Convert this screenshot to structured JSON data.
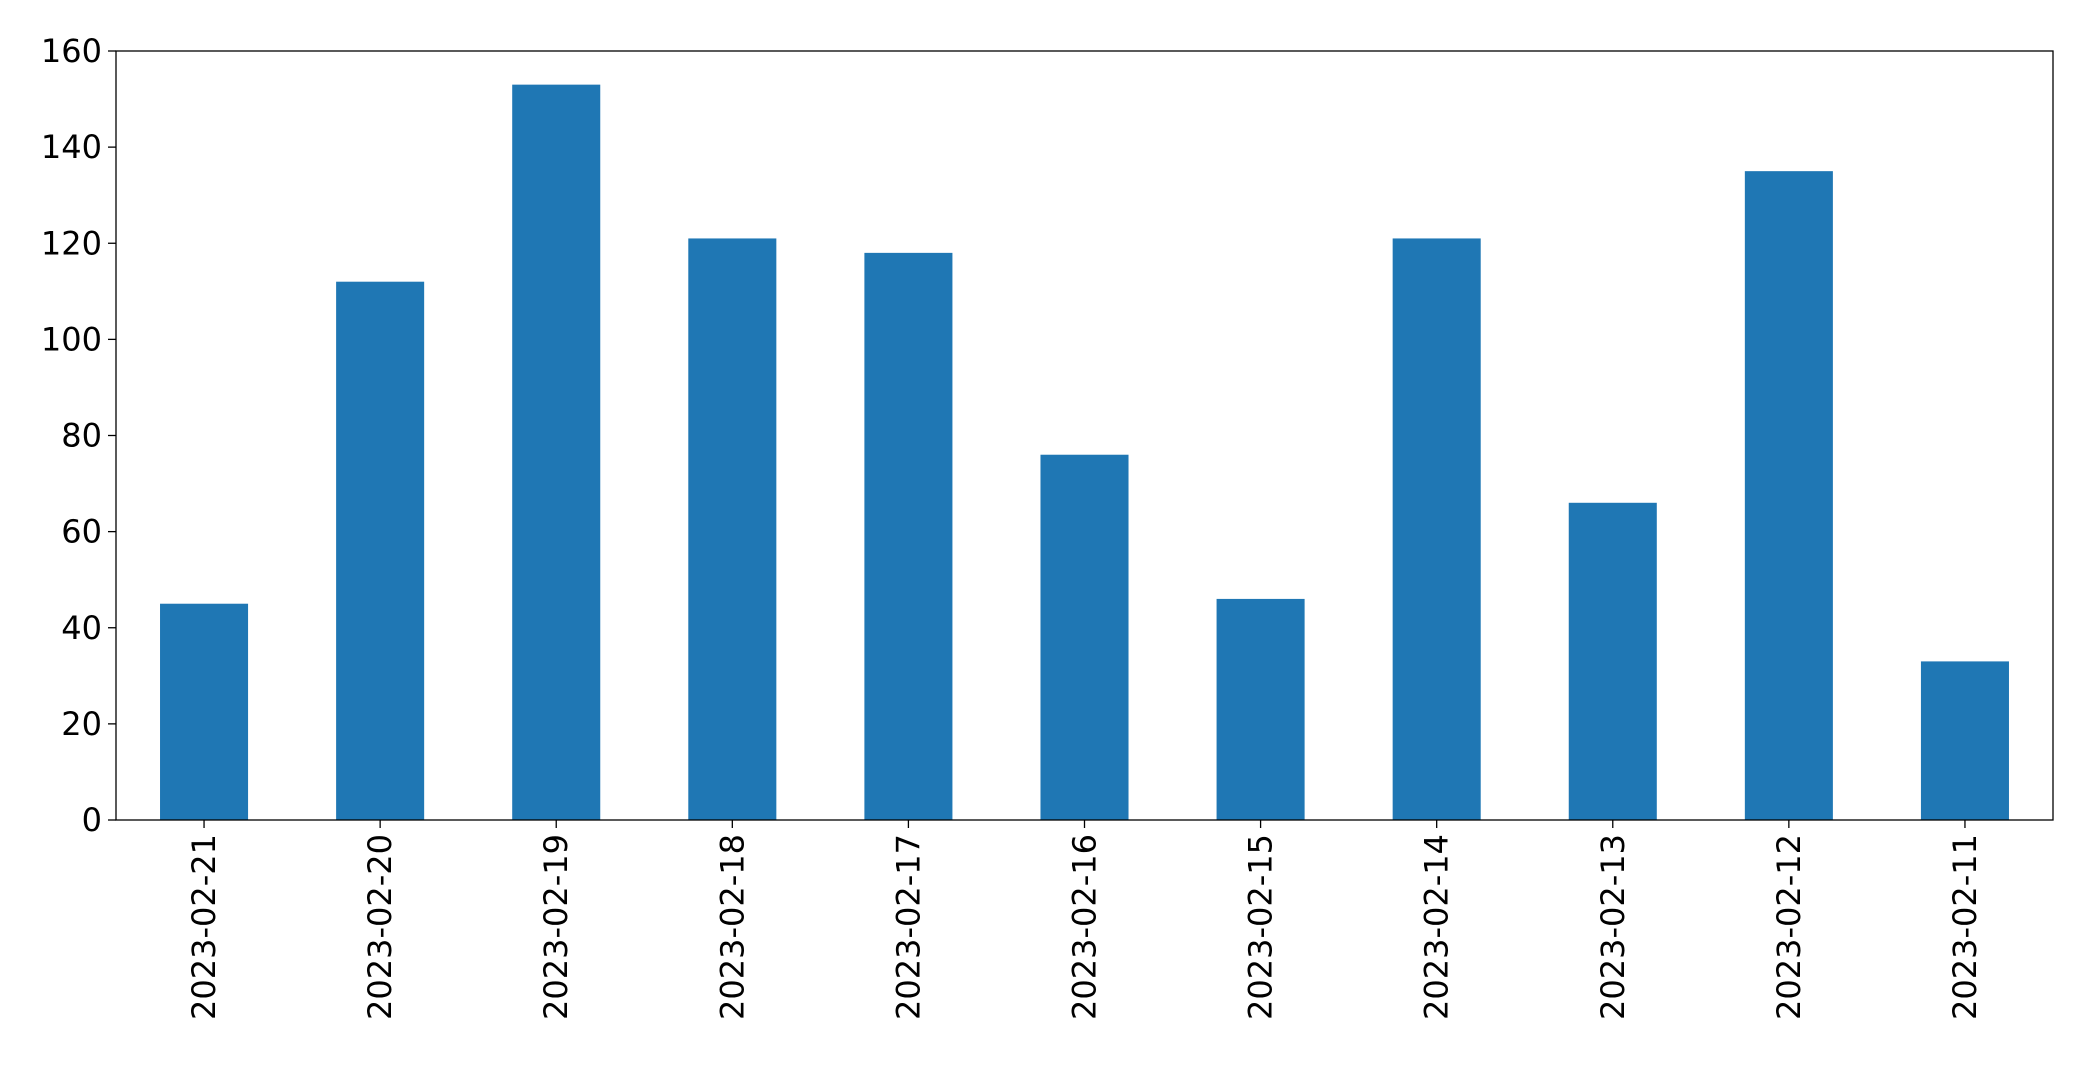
{
  "chart_data": {
    "type": "bar",
    "categories": [
      "2023-02-21",
      "2023-02-20",
      "2023-02-19",
      "2023-02-18",
      "2023-02-17",
      "2023-02-16",
      "2023-02-15",
      "2023-02-14",
      "2023-02-13",
      "2023-02-12",
      "2023-02-11"
    ],
    "values": [
      45,
      112,
      153,
      121,
      118,
      76,
      46,
      121,
      66,
      135,
      33
    ],
    "color": "#1f77b4",
    "ylim": [
      0,
      160
    ],
    "yticks": [
      0,
      20,
      40,
      60,
      80,
      100,
      120,
      140,
      160
    ],
    "grid": false
  }
}
